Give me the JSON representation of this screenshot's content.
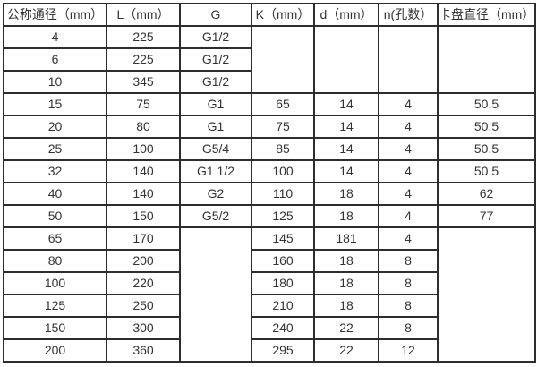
{
  "table": {
    "headers": [
      "公称通径（mm）",
      "L（mm）",
      "G",
      "K（mm）",
      "d（mm）",
      "n(孔数）",
      "卡盘直径（mm）"
    ],
    "rows": [
      {
        "dn": "4",
        "l": "225",
        "g": "G1/2"
      },
      {
        "dn": "6",
        "l": "225",
        "g": "G1/2"
      },
      {
        "dn": "10",
        "l": "345",
        "g": "G1/2"
      },
      {
        "dn": "15",
        "l": "75",
        "g": "G1",
        "k": "65",
        "d": "14",
        "n": "4",
        "cp": "50.5"
      },
      {
        "dn": "20",
        "l": "80",
        "g": "G1",
        "k": "75",
        "d": "14",
        "n": "4",
        "cp": "50.5"
      },
      {
        "dn": "25",
        "l": "100",
        "g": "G5/4",
        "k": "85",
        "d": "14",
        "n": "4",
        "cp": "50.5"
      },
      {
        "dn": "32",
        "l": "140",
        "g": "G1 1/2",
        "k": "100",
        "d": "14",
        "n": "4",
        "cp": "50.5"
      },
      {
        "dn": "40",
        "l": "140",
        "g": "G2",
        "k": "110",
        "d": "18",
        "n": "4",
        "cp": "62"
      },
      {
        "dn": "50",
        "l": "150",
        "g": "G5/2",
        "k": "125",
        "d": "18",
        "n": "4",
        "cp": "77"
      },
      {
        "dn": "65",
        "l": "170",
        "k": "145",
        "d": "181",
        "n": "4"
      },
      {
        "dn": "80",
        "l": "200",
        "k": "160",
        "d": "18",
        "n": "8"
      },
      {
        "dn": "100",
        "l": "220",
        "k": "180",
        "d": "18",
        "n": "8"
      },
      {
        "dn": "125",
        "l": "250",
        "k": "210",
        "d": "18",
        "n": "8"
      },
      {
        "dn": "150",
        "l": "300",
        "k": "240",
        "d": "22",
        "n": "8"
      },
      {
        "dn": "200",
        "l": "360",
        "k": "295",
        "d": "22",
        "n": "12"
      }
    ],
    "border_color": "#2d2d2d",
    "background_color": "#ffffff",
    "text_color": "#333333"
  }
}
